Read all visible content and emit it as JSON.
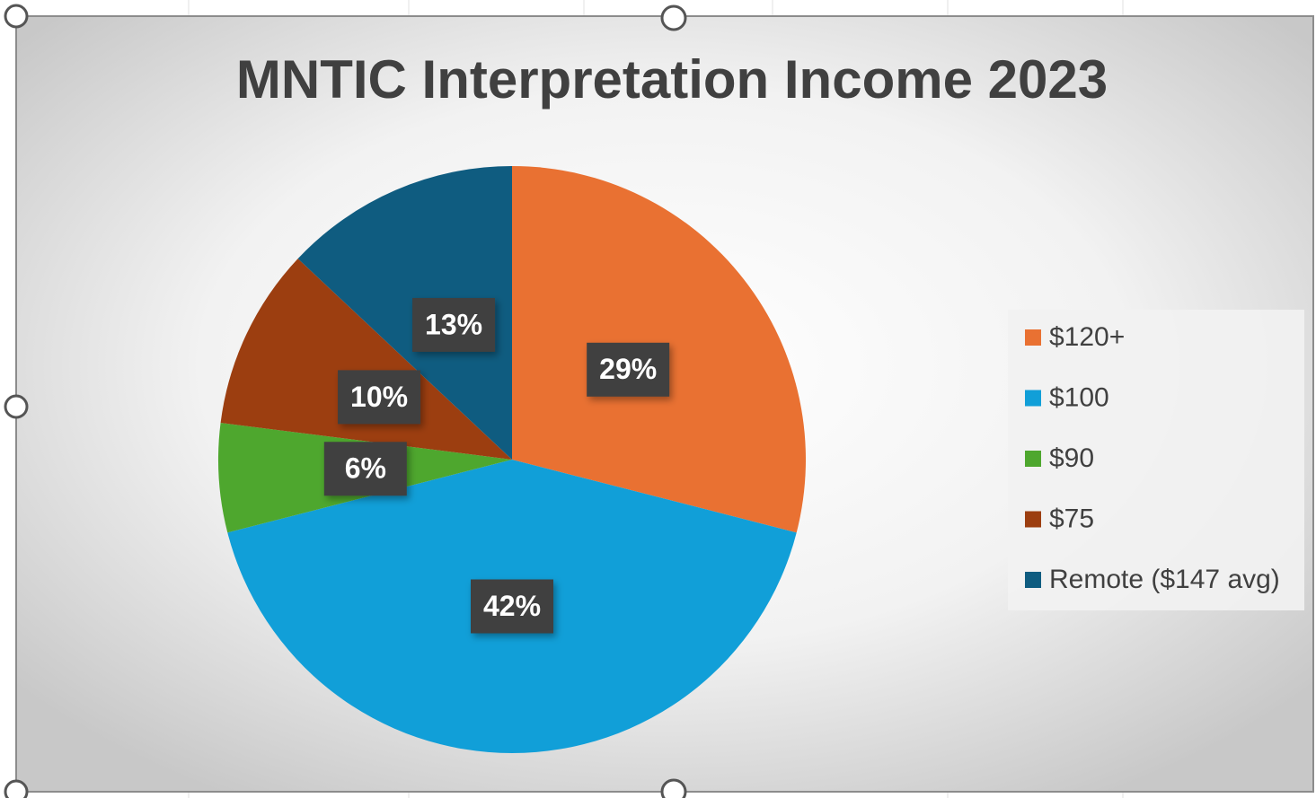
{
  "chart_data": {
    "type": "pie",
    "title": "MNTIC Interpretation Income 2023",
    "categories": [
      "$120+",
      "$100",
      "$90",
      "$75",
      "Remote ($147 avg)"
    ],
    "values": [
      29,
      42,
      6,
      10,
      13
    ],
    "value_labels": [
      "29%",
      "42%",
      "6%",
      "10%",
      "13%"
    ],
    "colors": [
      "#e97132",
      "#119fd8",
      "#4ea72e",
      "#9c3e10",
      "#0f5c80"
    ],
    "legend": "right"
  }
}
